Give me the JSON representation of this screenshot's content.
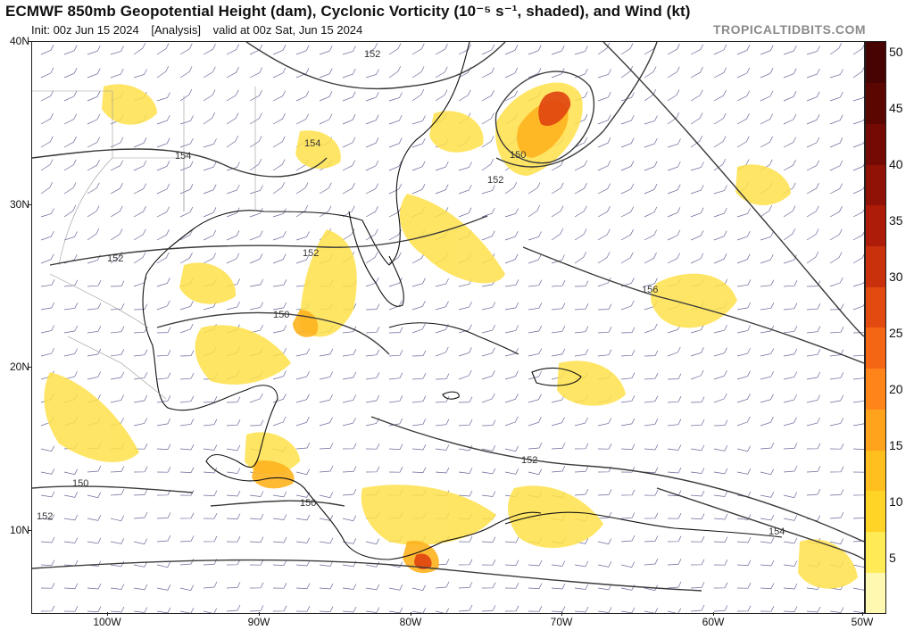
{
  "header": {
    "title": "ECMWF 850mb Geopotential Height (dam), Cyclonic Vorticity (10⁻⁵ s⁻¹, shaded), and Wind (kt)",
    "init": "Init: 00z Jun 15 2024",
    "analysis": "[Analysis]",
    "valid": "valid at 00z Sat, Jun 15 2024",
    "brand": "TROPICALTIDBITS.COM"
  },
  "axes": {
    "lat_labels": [
      "40N",
      "30N",
      "20N",
      "10N"
    ],
    "lon_labels": [
      "100W",
      "90W",
      "80W",
      "70W",
      "60W",
      "50W"
    ]
  },
  "contour_labels": [
    "152",
    "152",
    "154",
    "154",
    "152",
    "152",
    "150",
    "150",
    "152",
    "156",
    "150",
    "150",
    "152",
    "154"
  ],
  "colorbar": {
    "labels": [
      "50",
      "45",
      "40",
      "35",
      "30",
      "25",
      "20",
      "15",
      "10",
      "5"
    ],
    "colors": [
      "#fff8b0",
      "#ffeb55",
      "#ffd426",
      "#ffbf1f",
      "#ffa21c",
      "#ff8419",
      "#f46514",
      "#e34a10",
      "#c9300c",
      "#ad1c09",
      "#901106",
      "#750a04",
      "#5c0602",
      "#470302"
    ]
  },
  "colors": {
    "contour": "#3a3a3a",
    "coast": "#111111",
    "border_fine": "#9a9a9a",
    "barb": "#6a6a9a"
  }
}
